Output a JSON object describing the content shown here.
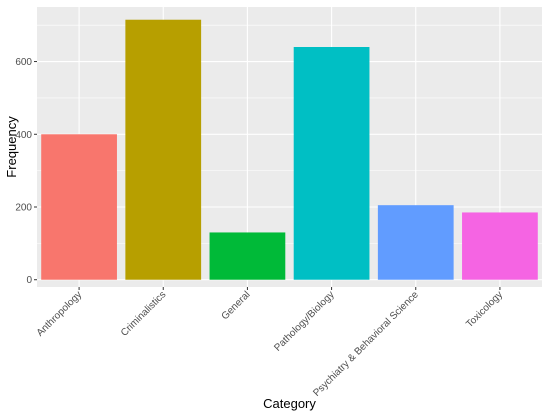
{
  "chart_data": {
    "type": "bar",
    "xlabel": "Category",
    "ylabel": "Frequency",
    "categories": [
      "Anthropology",
      "Criminalistics",
      "General",
      "Pathology/Biology",
      "Psychiatry & Behavioral Science",
      "Toxicology"
    ],
    "values": [
      400,
      715,
      130,
      640,
      205,
      185
    ],
    "colors": [
      "#F8766D",
      "#B79F00",
      "#00BA38",
      "#00BFC4",
      "#619CFF",
      "#F564E3"
    ],
    "ylim": [
      -20,
      750
    ],
    "yticks": [
      0,
      200,
      400,
      600
    ],
    "ytick_labels": [
      "0",
      "200",
      "400",
      "600"
    ],
    "grid": true,
    "panel_background": "#EBEBEB",
    "grid_color": "#FFFFFF",
    "legend": "none"
  }
}
